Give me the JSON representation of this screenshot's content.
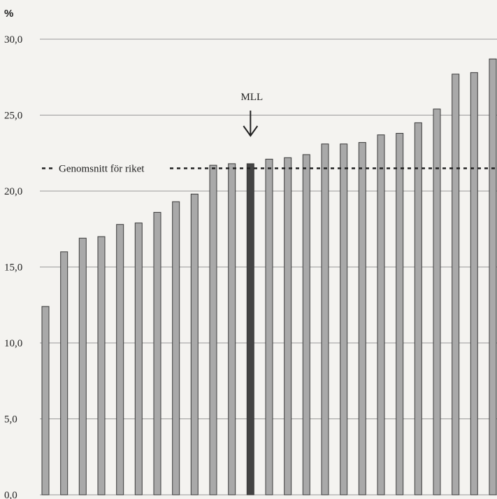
{
  "chart_data": {
    "type": "bar",
    "title": "",
    "xlabel": "",
    "ylabel": "%",
    "ylim": [
      0,
      30
    ],
    "yticks": [
      "0,0",
      "5,0",
      "10,0",
      "15,0",
      "20,0",
      "25,0",
      "30,0"
    ],
    "grid": true,
    "values": [
      12.4,
      16.0,
      16.9,
      17.0,
      17.8,
      17.9,
      18.6,
      19.3,
      19.8,
      21.7,
      21.8,
      21.8,
      22.1,
      22.2,
      22.4,
      23.1,
      23.1,
      23.2,
      23.7,
      23.8,
      24.5,
      25.4,
      27.7,
      27.8,
      28.7
    ],
    "highlight_index": 11,
    "highlight_label": "MLL",
    "reference_line": {
      "label": "Genomsnitt för riket",
      "value": 21.5
    },
    "colors": {
      "bar": "#a9a9a9",
      "bar_stroke": "#3a3a3a",
      "highlight": "#444444",
      "grid": "#9a9a9a"
    }
  }
}
